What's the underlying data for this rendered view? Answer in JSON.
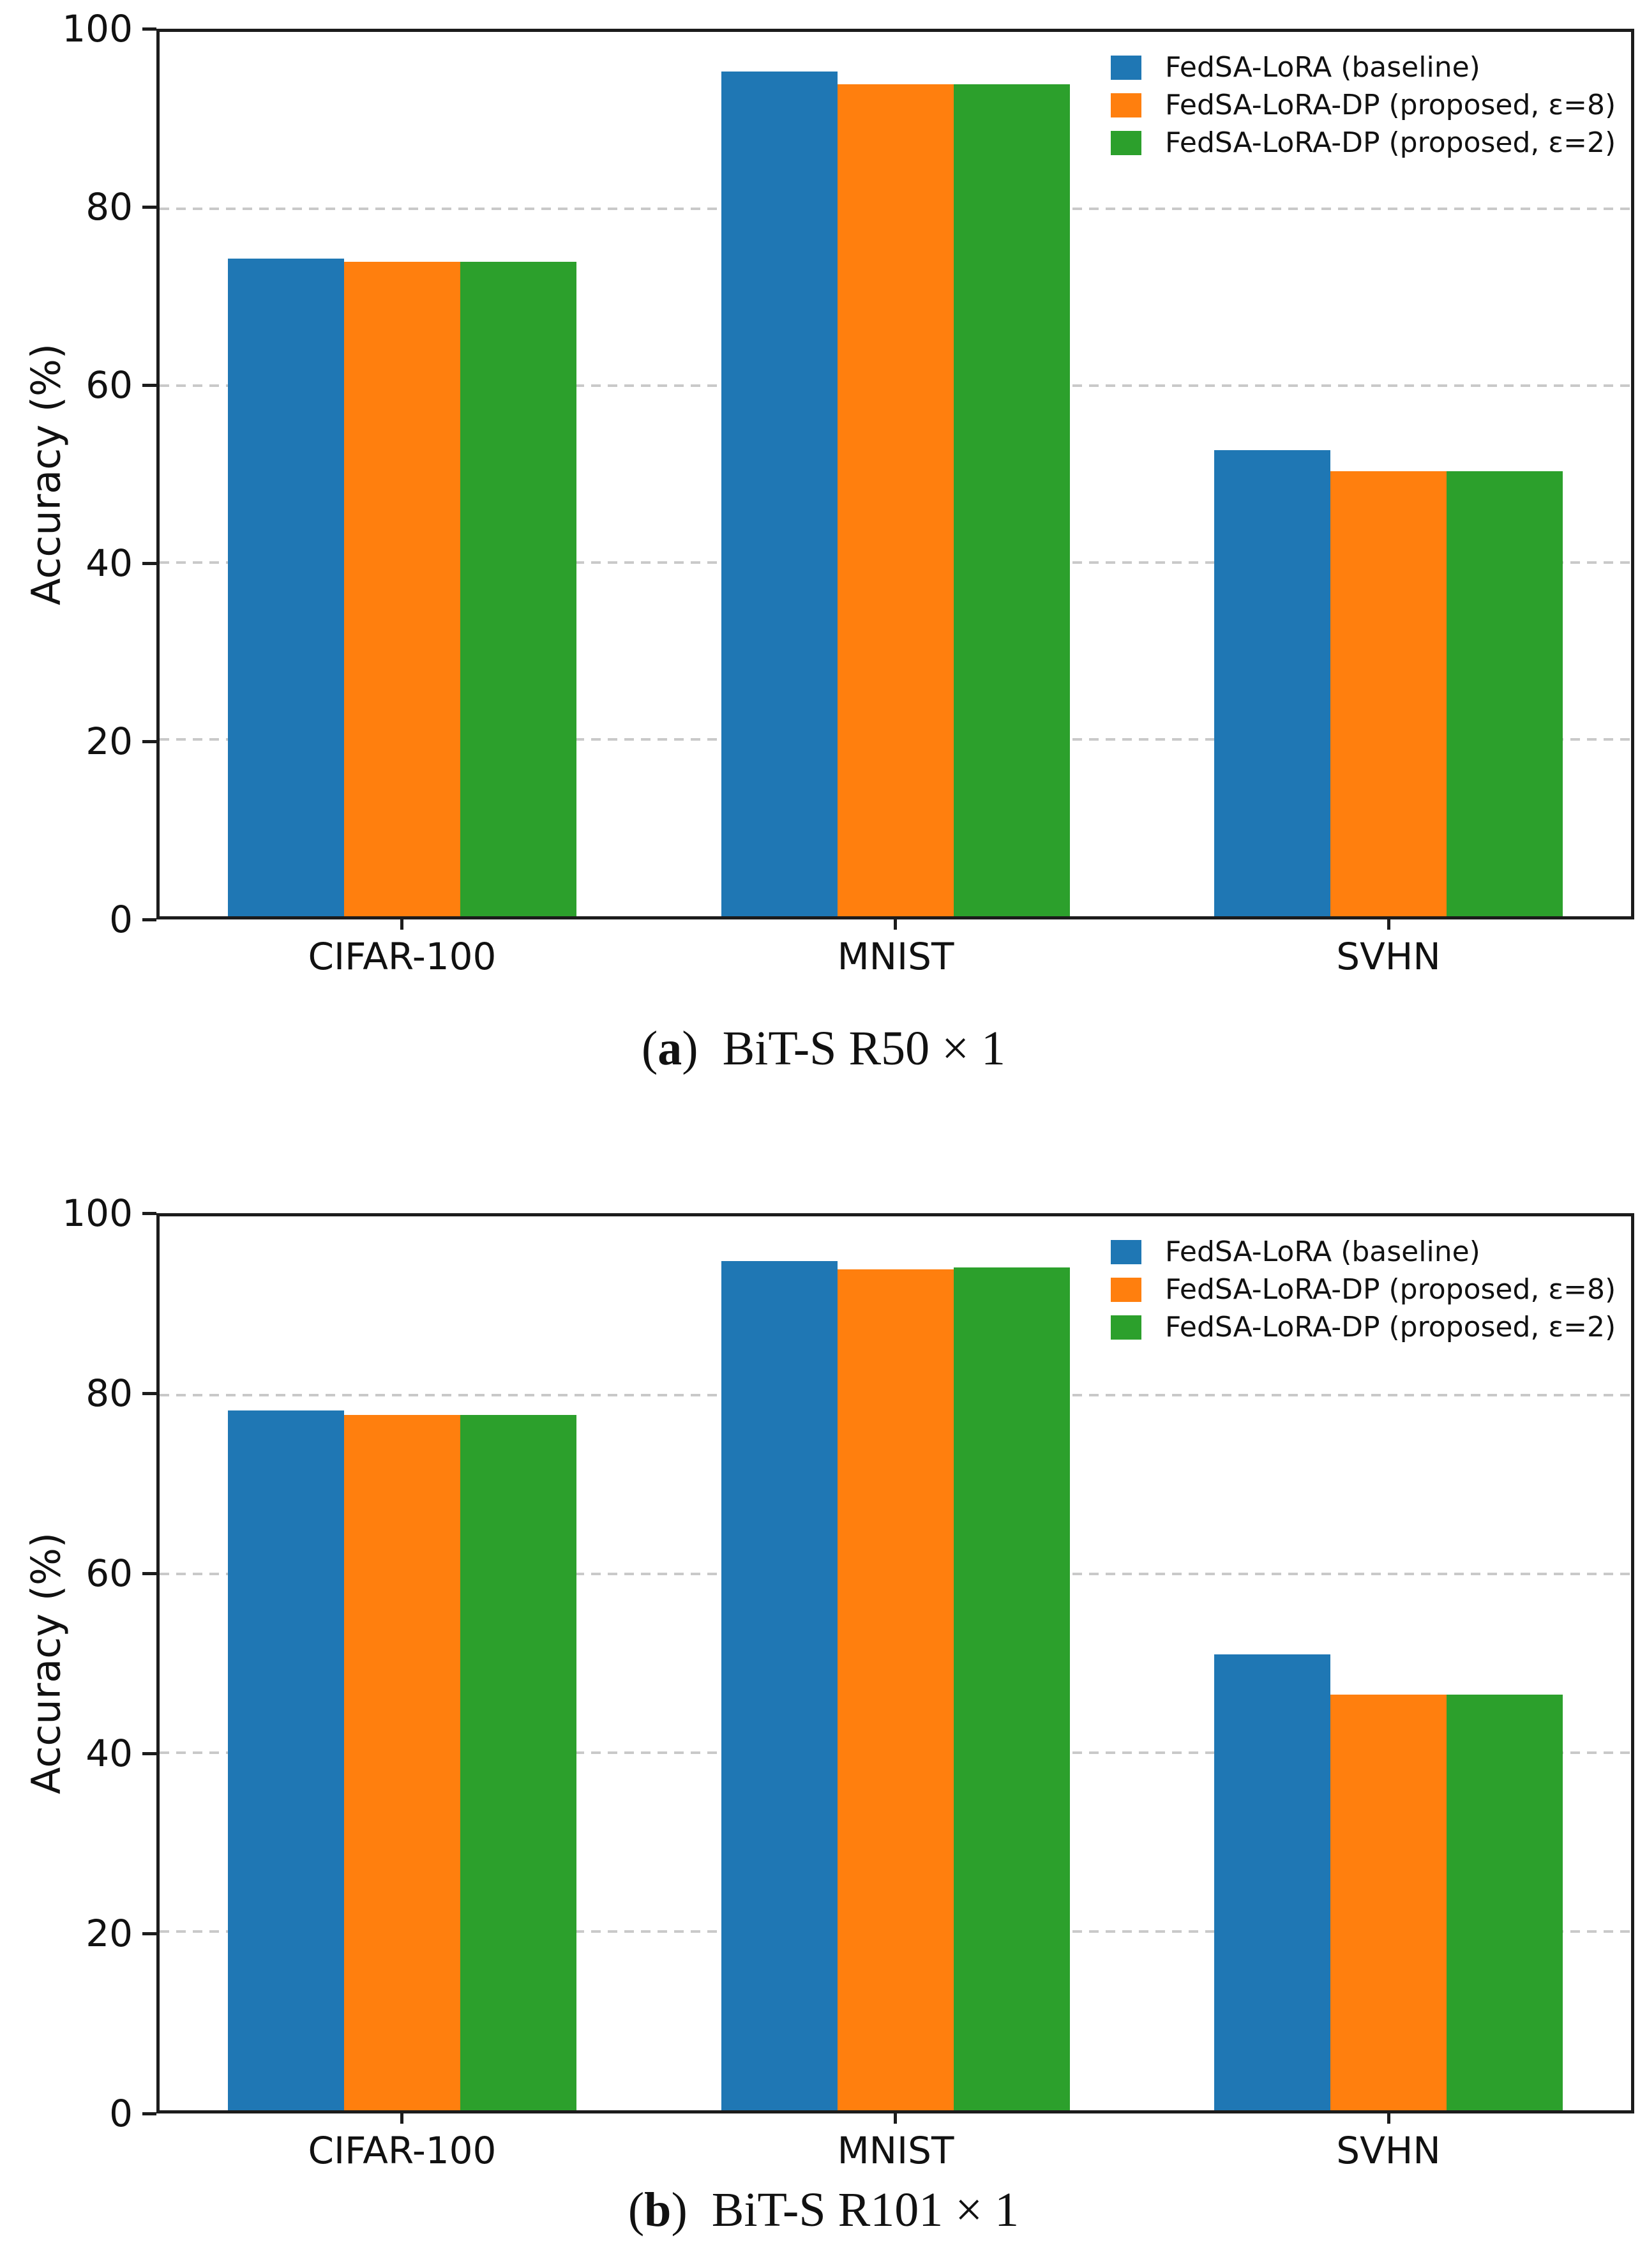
{
  "chart_data": [
    {
      "type": "bar",
      "title": "(a) BiT-S R50 × 1",
      "caption": {
        "open": "(",
        "letter": "a",
        "close": ")",
        "text": "BiT-S R50 × 1"
      },
      "categories": [
        "CIFAR-100",
        "MNIST",
        "SVHN"
      ],
      "series": [
        {
          "name": "FedSA-LoRA (baseline)",
          "color": "#1f77b4",
          "values": [
            74.4,
            95.5,
            52.7
          ]
        },
        {
          "name": "FedSA-LoRA-DP (proposed, ε=8)",
          "color": "#ff7f0e",
          "values": [
            74.0,
            94.1,
            50.3
          ]
        },
        {
          "name": "FedSA-LoRA-DP (proposed, ε=2)",
          "color": "#2ca02c",
          "values": [
            74.0,
            94.1,
            50.3
          ]
        }
      ],
      "xlabel": "",
      "ylabel": "Accuracy (%)",
      "ylim": [
        0,
        100
      ],
      "yticks": [
        0,
        20,
        40,
        60,
        80,
        100
      ],
      "grid": {
        "axis": "y",
        "style": "dashed",
        "color": "#c9c9c9"
      },
      "legend_position": "upper right",
      "legend_frame": false
    },
    {
      "type": "bar",
      "title": "(b) BiT-S R101 × 1",
      "caption": {
        "open": "(",
        "letter": "b",
        "close": ")",
        "text": "BiT-S R101 × 1"
      },
      "categories": [
        "CIFAR-100",
        "MNIST",
        "SVHN"
      ],
      "series": [
        {
          "name": "FedSA-LoRA (baseline)",
          "color": "#1f77b4",
          "values": [
            78.3,
            95.0,
            51.0
          ]
        },
        {
          "name": "FedSA-LoRA-DP (proposed, ε=8)",
          "color": "#ff7f0e",
          "values": [
            77.8,
            94.1,
            46.5
          ]
        },
        {
          "name": "FedSA-LoRA-DP (proposed, ε=2)",
          "color": "#2ca02c",
          "values": [
            77.8,
            94.3,
            46.5
          ]
        }
      ],
      "xlabel": "",
      "ylabel": "Accuracy (%)",
      "ylim": [
        0,
        100
      ],
      "yticks": [
        0,
        20,
        40,
        60,
        80,
        100
      ],
      "grid": {
        "axis": "y",
        "style": "dashed",
        "color": "#c9c9c9"
      },
      "legend_position": "upper right",
      "legend_frame": false
    }
  ]
}
